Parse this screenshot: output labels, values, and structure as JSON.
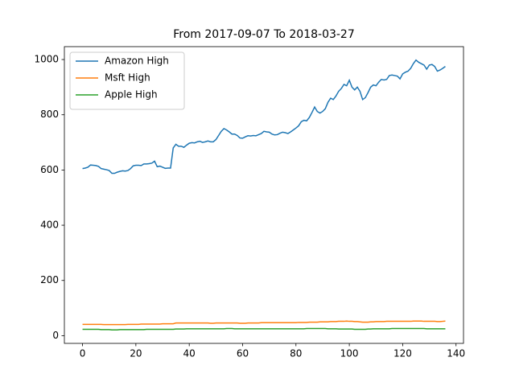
{
  "chart_data": {
    "type": "line",
    "title": "From 2017-09-07 To 2018-03-27",
    "x": [
      0,
      1,
      2,
      3,
      4,
      5,
      6,
      7,
      8,
      9,
      10,
      11,
      12,
      13,
      14,
      15,
      16,
      17,
      18,
      19,
      20,
      21,
      22,
      23,
      24,
      25,
      26,
      27,
      28,
      29,
      30,
      31,
      32,
      33,
      34,
      35,
      36,
      37,
      38,
      39,
      40,
      41,
      42,
      43,
      44,
      45,
      46,
      47,
      48,
      49,
      50,
      51,
      52,
      53,
      54,
      55,
      56,
      57,
      58,
      59,
      60,
      61,
      62,
      63,
      64,
      65,
      66,
      67,
      68,
      69,
      70,
      71,
      72,
      73,
      74,
      75,
      76,
      77,
      78,
      79,
      80,
      81,
      82,
      83,
      84,
      85,
      86,
      87,
      88,
      89,
      90,
      91,
      92,
      93,
      94,
      95,
      96,
      97,
      98,
      99,
      100,
      101,
      102,
      103,
      104,
      105,
      106,
      107,
      108,
      109,
      110,
      111,
      112,
      113,
      114,
      115,
      116,
      117,
      118,
      119,
      120,
      121,
      122,
      123,
      124,
      125,
      126,
      127,
      128,
      129,
      130,
      131,
      132,
      133,
      134,
      135,
      136
    ],
    "series": [
      {
        "name": "Amazon High",
        "color": "#1f77b4",
        "values": [
          605,
          607,
          610,
          618,
          617,
          616,
          613,
          605,
          603,
          601,
          598,
          588,
          588,
          592,
          595,
          597,
          596,
          598,
          605,
          615,
          617,
          617,
          616,
          622,
          622,
          623,
          625,
          632,
          612,
          614,
          610,
          606,
          607,
          607,
          680,
          693,
          686,
          686,
          682,
          690,
          697,
          699,
          698,
          702,
          704,
          700,
          702,
          705,
          702,
          702,
          710,
          725,
          740,
          750,
          745,
          738,
          730,
          730,
          725,
          716,
          715,
          720,
          724,
          723,
          725,
          724,
          728,
          732,
          740,
          738,
          737,
          730,
          727,
          728,
          733,
          737,
          735,
          732,
          738,
          745,
          752,
          760,
          775,
          780,
          778,
          790,
          808,
          828,
          812,
          806,
          812,
          822,
          845,
          860,
          855,
          868,
          885,
          895,
          910,
          905,
          925,
          900,
          890,
          900,
          885,
          855,
          862,
          880,
          900,
          908,
          905,
          918,
          928,
          926,
          928,
          942,
          944,
          942,
          940,
          930,
          948,
          954,
          958,
          968,
          985,
          998,
          990,
          985,
          980,
          965,
          980,
          982,
          975,
          958,
          962,
          968,
          975
        ]
      },
      {
        "name": "Msft High",
        "color": "#ff7f0e",
        "values": [
          41,
          41,
          41,
          41,
          41,
          41,
          41,
          41,
          40,
          40,
          40,
          40,
          40,
          40,
          40,
          40,
          40,
          41,
          41,
          41,
          41,
          41,
          42,
          42,
          42,
          42,
          42,
          42,
          42,
          42,
          43,
          43,
          43,
          43,
          43,
          46,
          46,
          46,
          46,
          46,
          46,
          46,
          46,
          46,
          46,
          46,
          46,
          46,
          45,
          45,
          46,
          46,
          46,
          46,
          46,
          46,
          46,
          46,
          46,
          45,
          45,
          45,
          46,
          46,
          46,
          46,
          46,
          47,
          47,
          47,
          47,
          47,
          47,
          47,
          47,
          47,
          47,
          47,
          47,
          47,
          47,
          48,
          48,
          48,
          48,
          49,
          49,
          49,
          49,
          50,
          50,
          50,
          50,
          51,
          51,
          51,
          52,
          52,
          52,
          53,
          52,
          52,
          51,
          51,
          50,
          49,
          49,
          49,
          50,
          50,
          51,
          51,
          51,
          51,
          52,
          52,
          52,
          52,
          52,
          52,
          52,
          52,
          52,
          52,
          53,
          53,
          53,
          53,
          52,
          52,
          52,
          52,
          52,
          51,
          51,
          52,
          53
        ]
      },
      {
        "name": "Apple High",
        "color": "#2ca02c",
        "values": [
          23,
          23,
          23,
          23,
          23,
          23,
          23,
          22,
          22,
          22,
          22,
          21,
          21,
          21,
          22,
          22,
          22,
          22,
          22,
          22,
          22,
          22,
          22,
          22,
          23,
          23,
          23,
          23,
          23,
          23,
          23,
          23,
          23,
          23,
          23,
          24,
          24,
          24,
          24,
          25,
          25,
          25,
          25,
          25,
          25,
          25,
          25,
          25,
          25,
          25,
          25,
          25,
          25,
          25,
          26,
          26,
          26,
          25,
          25,
          25,
          25,
          25,
          25,
          25,
          25,
          25,
          25,
          25,
          25,
          25,
          25,
          25,
          25,
          25,
          25,
          25,
          25,
          25,
          25,
          25,
          25,
          25,
          25,
          25,
          26,
          26,
          26,
          26,
          26,
          26,
          26,
          26,
          25,
          25,
          25,
          25,
          24,
          24,
          24,
          24,
          24,
          24,
          23,
          23,
          23,
          23,
          23,
          24,
          24,
          25,
          25,
          25,
          25,
          25,
          25,
          25,
          26,
          26,
          26,
          26,
          26,
          26,
          26,
          26,
          26,
          26,
          26,
          26,
          26,
          25,
          25,
          25,
          25,
          25,
          25,
          25,
          25
        ]
      }
    ],
    "xlim": [
      -6.8,
      142.8
    ],
    "xticks": [
      0,
      20,
      40,
      60,
      80,
      100,
      120,
      140
    ],
    "ylim": [
      -27.9,
      1046.7
    ],
    "yticks": [
      0,
      200,
      400,
      600,
      800,
      1000
    ],
    "legend": "upper left",
    "grid": false
  }
}
